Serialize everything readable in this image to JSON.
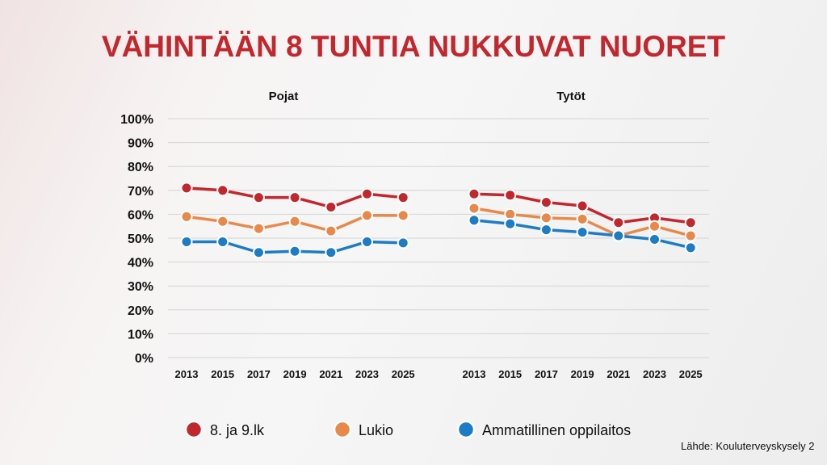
{
  "chart_data": {
    "type": "line",
    "title": "VÄHINTÄÄN 8 TUNTIA NUKKUVAT NUORET",
    "title_color": "#c1272d",
    "yticks": [
      "100%",
      "90%",
      "80%",
      "70%",
      "60%",
      "50%",
      "40%",
      "30%",
      "20%",
      "10%",
      "0%"
    ],
    "ylim": [
      0,
      100
    ],
    "source": "Lähde: Kouluterveyskysely 2",
    "legend": [
      {
        "name": "8. ja 9.lk",
        "color": "#c1272d"
      },
      {
        "name": "Lukio",
        "color": "#e8894a"
      },
      {
        "name": "Ammatillinen oppilaitos",
        "color": "#1c7cc6"
      }
    ],
    "panels": [
      {
        "title": "Pojat",
        "categories": [
          "2013",
          "2015",
          "2017",
          "2019",
          "2021",
          "2023",
          "2025"
        ],
        "series": [
          {
            "name": "8. ja 9.lk",
            "color": "#c1272d",
            "values": [
              71,
              70,
              67,
              67,
              63,
              68.5,
              67
            ]
          },
          {
            "name": "Lukio",
            "color": "#e8894a",
            "values": [
              59,
              57,
              54,
              57,
              53,
              59.5,
              59.5
            ]
          },
          {
            "name": "Ammatillinen oppilaitos",
            "color": "#1c7cc6",
            "values": [
              48.5,
              48.5,
              44,
              44.5,
              44,
              48.5,
              48
            ]
          }
        ]
      },
      {
        "title": "Tytöt",
        "categories": [
          "2013",
          "2015",
          "2017",
          "2019",
          "2021",
          "2023",
          "2025"
        ],
        "series": [
          {
            "name": "8. ja 9.lk",
            "color": "#c1272d",
            "values": [
              68.5,
              68,
              65,
              63.5,
              56.5,
              58.5,
              56.5
            ]
          },
          {
            "name": "Lukio",
            "color": "#e8894a",
            "values": [
              62.5,
              60,
              58.5,
              58,
              51,
              55,
              51
            ]
          },
          {
            "name": "Ammatillinen oppilaitos",
            "color": "#1c7cc6",
            "values": [
              57.5,
              56,
              53.5,
              52.5,
              51,
              49.5,
              46
            ]
          }
        ]
      }
    ]
  }
}
